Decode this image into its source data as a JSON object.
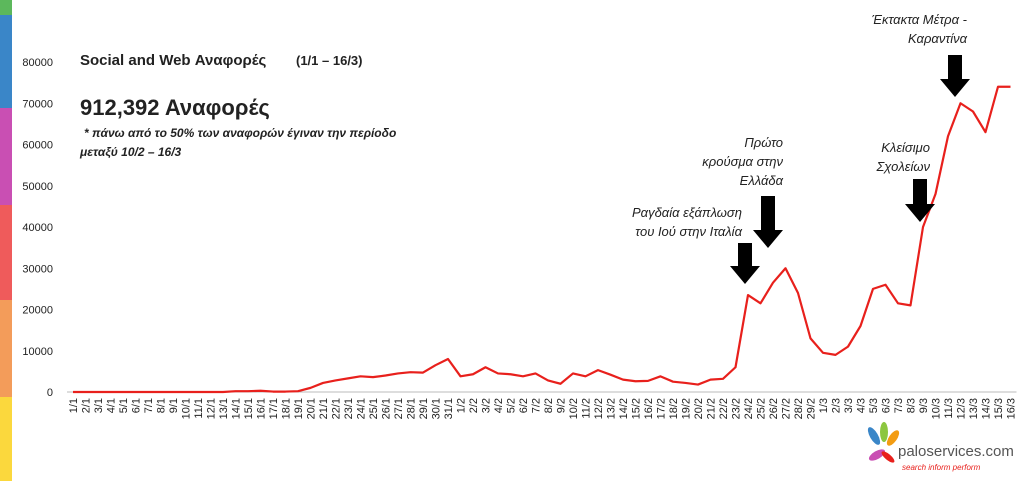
{
  "chart_data": {
    "type": "line",
    "title": "Social and Web Αναφορές",
    "title_period": "(1/1 – 16/3)",
    "headline": "912,392 Αναφορές",
    "note_lines": [
      "* πάνω από το 50% των αναφορών  έγιναν την   περίοδο",
      "μεταξύ 10/2 – 16/3"
    ],
    "categories": [
      "1/1",
      "2/1",
      "3/1",
      "4/1",
      "5/1",
      "6/1",
      "7/1",
      "8/1",
      "9/1",
      "10/1",
      "11/1",
      "12/1",
      "13/1",
      "14/1",
      "15/1",
      "16/1",
      "17/1",
      "18/1",
      "19/1",
      "20/1",
      "21/1",
      "22/1",
      "23/1",
      "24/1",
      "25/1",
      "26/1",
      "27/1",
      "28/1",
      "29/1",
      "30/1",
      "31/1",
      "1/2",
      "2/2",
      "3/2",
      "4/2",
      "5/2",
      "6/2",
      "7/2",
      "8/2",
      "9/2",
      "10/2",
      "11/2",
      "12/2",
      "13/2",
      "14/2",
      "15/2",
      "16/2",
      "17/2",
      "18/2",
      "19/2",
      "20/2",
      "21/2",
      "22/2",
      "23/2",
      "24/2",
      "25/2",
      "26/2",
      "27/2",
      "28/2",
      "29/2",
      "1/3",
      "2/3",
      "3/3",
      "4/3",
      "5/3",
      "6/3",
      "7/3",
      "8/3",
      "9/3",
      "10/3",
      "11/3",
      "12/3",
      "13/3",
      "14/3",
      "15/3",
      "16/3"
    ],
    "series": [
      {
        "name": "Αναφορές",
        "color": "#e8201c",
        "values": [
          0,
          0,
          0,
          0,
          0,
          0,
          0,
          0,
          0,
          0,
          0,
          0,
          0,
          200,
          200,
          300,
          100,
          100,
          200,
          1000,
          2200,
          2800,
          3300,
          3800,
          3600,
          4000,
          4500,
          4800,
          4700,
          6500,
          8000,
          3800,
          4300,
          6000,
          4500,
          4300,
          3800,
          4500,
          2800,
          2000,
          4500,
          3800,
          5300,
          4200,
          3000,
          2600,
          2700,
          3800,
          2500,
          2200,
          1800,
          3000,
          3200,
          6000,
          23500,
          21500,
          26500,
          30000,
          24000,
          13000,
          9500,
          9000,
          11000,
          16000,
          25000,
          26000,
          21500,
          21000,
          40000,
          48000,
          62000,
          70000,
          68000,
          63000,
          74000,
          74000
        ]
      }
    ],
    "ylim": [
      0,
      80000
    ],
    "yticks": [
      0,
      10000,
      20000,
      30000,
      40000,
      50000,
      60000,
      70000,
      80000
    ],
    "grid": false,
    "annotations": [
      {
        "lines": [
          "Ραγδαία εξάπλωση",
          "του Ιού στην Ιταλία"
        ]
      },
      {
        "lines": [
          "Πρώτο",
          "κρούσμα στην",
          "Ελλάδα"
        ]
      },
      {
        "lines": [
          "Κλείσιμο",
          "Σχολείων"
        ]
      },
      {
        "lines": [
          "Έκτακτα Μέτρα -",
          "Καραντίνα"
        ]
      }
    ],
    "logo": {
      "name": "paloservices.com",
      "tagline": "search inform perform"
    }
  }
}
